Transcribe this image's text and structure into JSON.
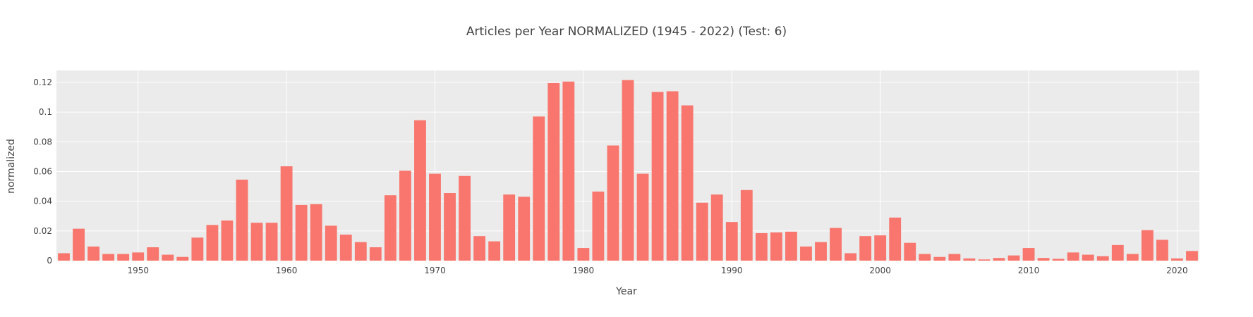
{
  "chart_data": {
    "type": "bar",
    "title": "Articles per Year NORMALIZED (1945 - 2022) (Test: 6)",
    "xlabel": "Year",
    "ylabel": "normalized",
    "xlim": [
      1944.5,
      2021.5
    ],
    "ylim": [
      0,
      0.128
    ],
    "grid": true,
    "background": "#ebebeb",
    "bar_color": "#f8766d",
    "x_ticks": [
      1950,
      1960,
      1970,
      1980,
      1990,
      2000,
      2010,
      2020
    ],
    "x_tick_labels": [
      "1950",
      "1960",
      "1970",
      "1980",
      "1990",
      "2000",
      "2010",
      "2020"
    ],
    "y_ticks": [
      0,
      0.02,
      0.04,
      0.06,
      0.08,
      0.1,
      0.12
    ],
    "y_tick_labels": [
      "0",
      "0.02",
      "0.04",
      "0.06",
      "0.08",
      "0.1",
      "0.12"
    ],
    "x": [
      1945,
      1946,
      1947,
      1948,
      1949,
      1950,
      1951,
      1952,
      1953,
      1954,
      1955,
      1956,
      1957,
      1958,
      1959,
      1960,
      1961,
      1962,
      1963,
      1964,
      1965,
      1966,
      1967,
      1968,
      1969,
      1970,
      1971,
      1972,
      1973,
      1974,
      1975,
      1976,
      1977,
      1978,
      1979,
      1980,
      1981,
      1982,
      1983,
      1984,
      1985,
      1986,
      1987,
      1988,
      1989,
      1990,
      1991,
      1992,
      1993,
      1994,
      1995,
      1996,
      1997,
      1998,
      1999,
      2000,
      2001,
      2002,
      2003,
      2004,
      2005,
      2006,
      2007,
      2008,
      2009,
      2010,
      2011,
      2012,
      2013,
      2014,
      2015,
      2016,
      2017,
      2018,
      2019,
      2020,
      2021
    ],
    "values": [
      0.005,
      0.0215,
      0.0095,
      0.0045,
      0.0045,
      0.0055,
      0.009,
      0.004,
      0.0025,
      0.0155,
      0.024,
      0.027,
      0.0545,
      0.0255,
      0.0255,
      0.0635,
      0.0375,
      0.038,
      0.0235,
      0.0175,
      0.0125,
      0.009,
      0.044,
      0.0605,
      0.0945,
      0.0585,
      0.0455,
      0.057,
      0.0165,
      0.013,
      0.0445,
      0.043,
      0.097,
      0.1195,
      0.1205,
      0.0085,
      0.0465,
      0.0775,
      0.1215,
      0.0585,
      0.1135,
      0.114,
      0.1045,
      0.039,
      0.0445,
      0.026,
      0.0475,
      0.0185,
      0.019,
      0.0195,
      0.0095,
      0.0125,
      0.022,
      0.005,
      0.0165,
      0.017,
      0.029,
      0.012,
      0.0045,
      0.0025,
      0.0045,
      0.0015,
      0.0008,
      0.0018,
      0.0035,
      0.0085,
      0.0018,
      0.0012,
      0.0055,
      0.004,
      0.003,
      0.0105,
      0.0045,
      0.0205,
      0.014,
      0.0015,
      0.0065
    ]
  }
}
